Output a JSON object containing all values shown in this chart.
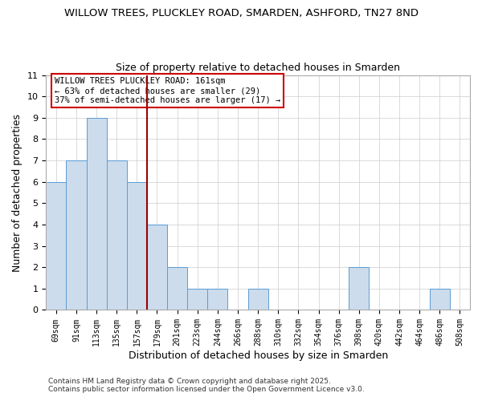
{
  "title": "WILLOW TREES, PLUCKLEY ROAD, SMARDEN, ASHFORD, TN27 8ND",
  "subtitle": "Size of property relative to detached houses in Smarden",
  "xlabel": "Distribution of detached houses by size in Smarden",
  "ylabel": "Number of detached properties",
  "categories": [
    "69sqm",
    "91sqm",
    "113sqm",
    "135sqm",
    "157sqm",
    "179sqm",
    "201sqm",
    "223sqm",
    "244sqm",
    "266sqm",
    "288sqm",
    "310sqm",
    "332sqm",
    "354sqm",
    "376sqm",
    "398sqm",
    "420sqm",
    "442sqm",
    "464sqm",
    "486sqm",
    "508sqm"
  ],
  "values": [
    6,
    7,
    9,
    7,
    6,
    4,
    2,
    1,
    1,
    0,
    1,
    0,
    0,
    0,
    0,
    2,
    0,
    0,
    0,
    1,
    0
  ],
  "bar_color": "#ccdcec",
  "bar_edge_color": "#5b9bd5",
  "bar_width": 1.0,
  "vline_x": 4.5,
  "vline_color": "#990000",
  "ylim": [
    0,
    11
  ],
  "yticks": [
    0,
    1,
    2,
    3,
    4,
    5,
    6,
    7,
    8,
    9,
    10,
    11
  ],
  "annotation_text": "WILLOW TREES PLUCKLEY ROAD: 161sqm\n← 63% of detached houses are smaller (29)\n37% of semi-detached houses are larger (17) →",
  "grid_color": "#cccccc",
  "bg_color": "#ffffff",
  "fig_bg_color": "#ffffff",
  "footnote1": "Contains HM Land Registry data © Crown copyright and database right 2025.",
  "footnote2": "Contains public sector information licensed under the Open Government Licence v3.0."
}
